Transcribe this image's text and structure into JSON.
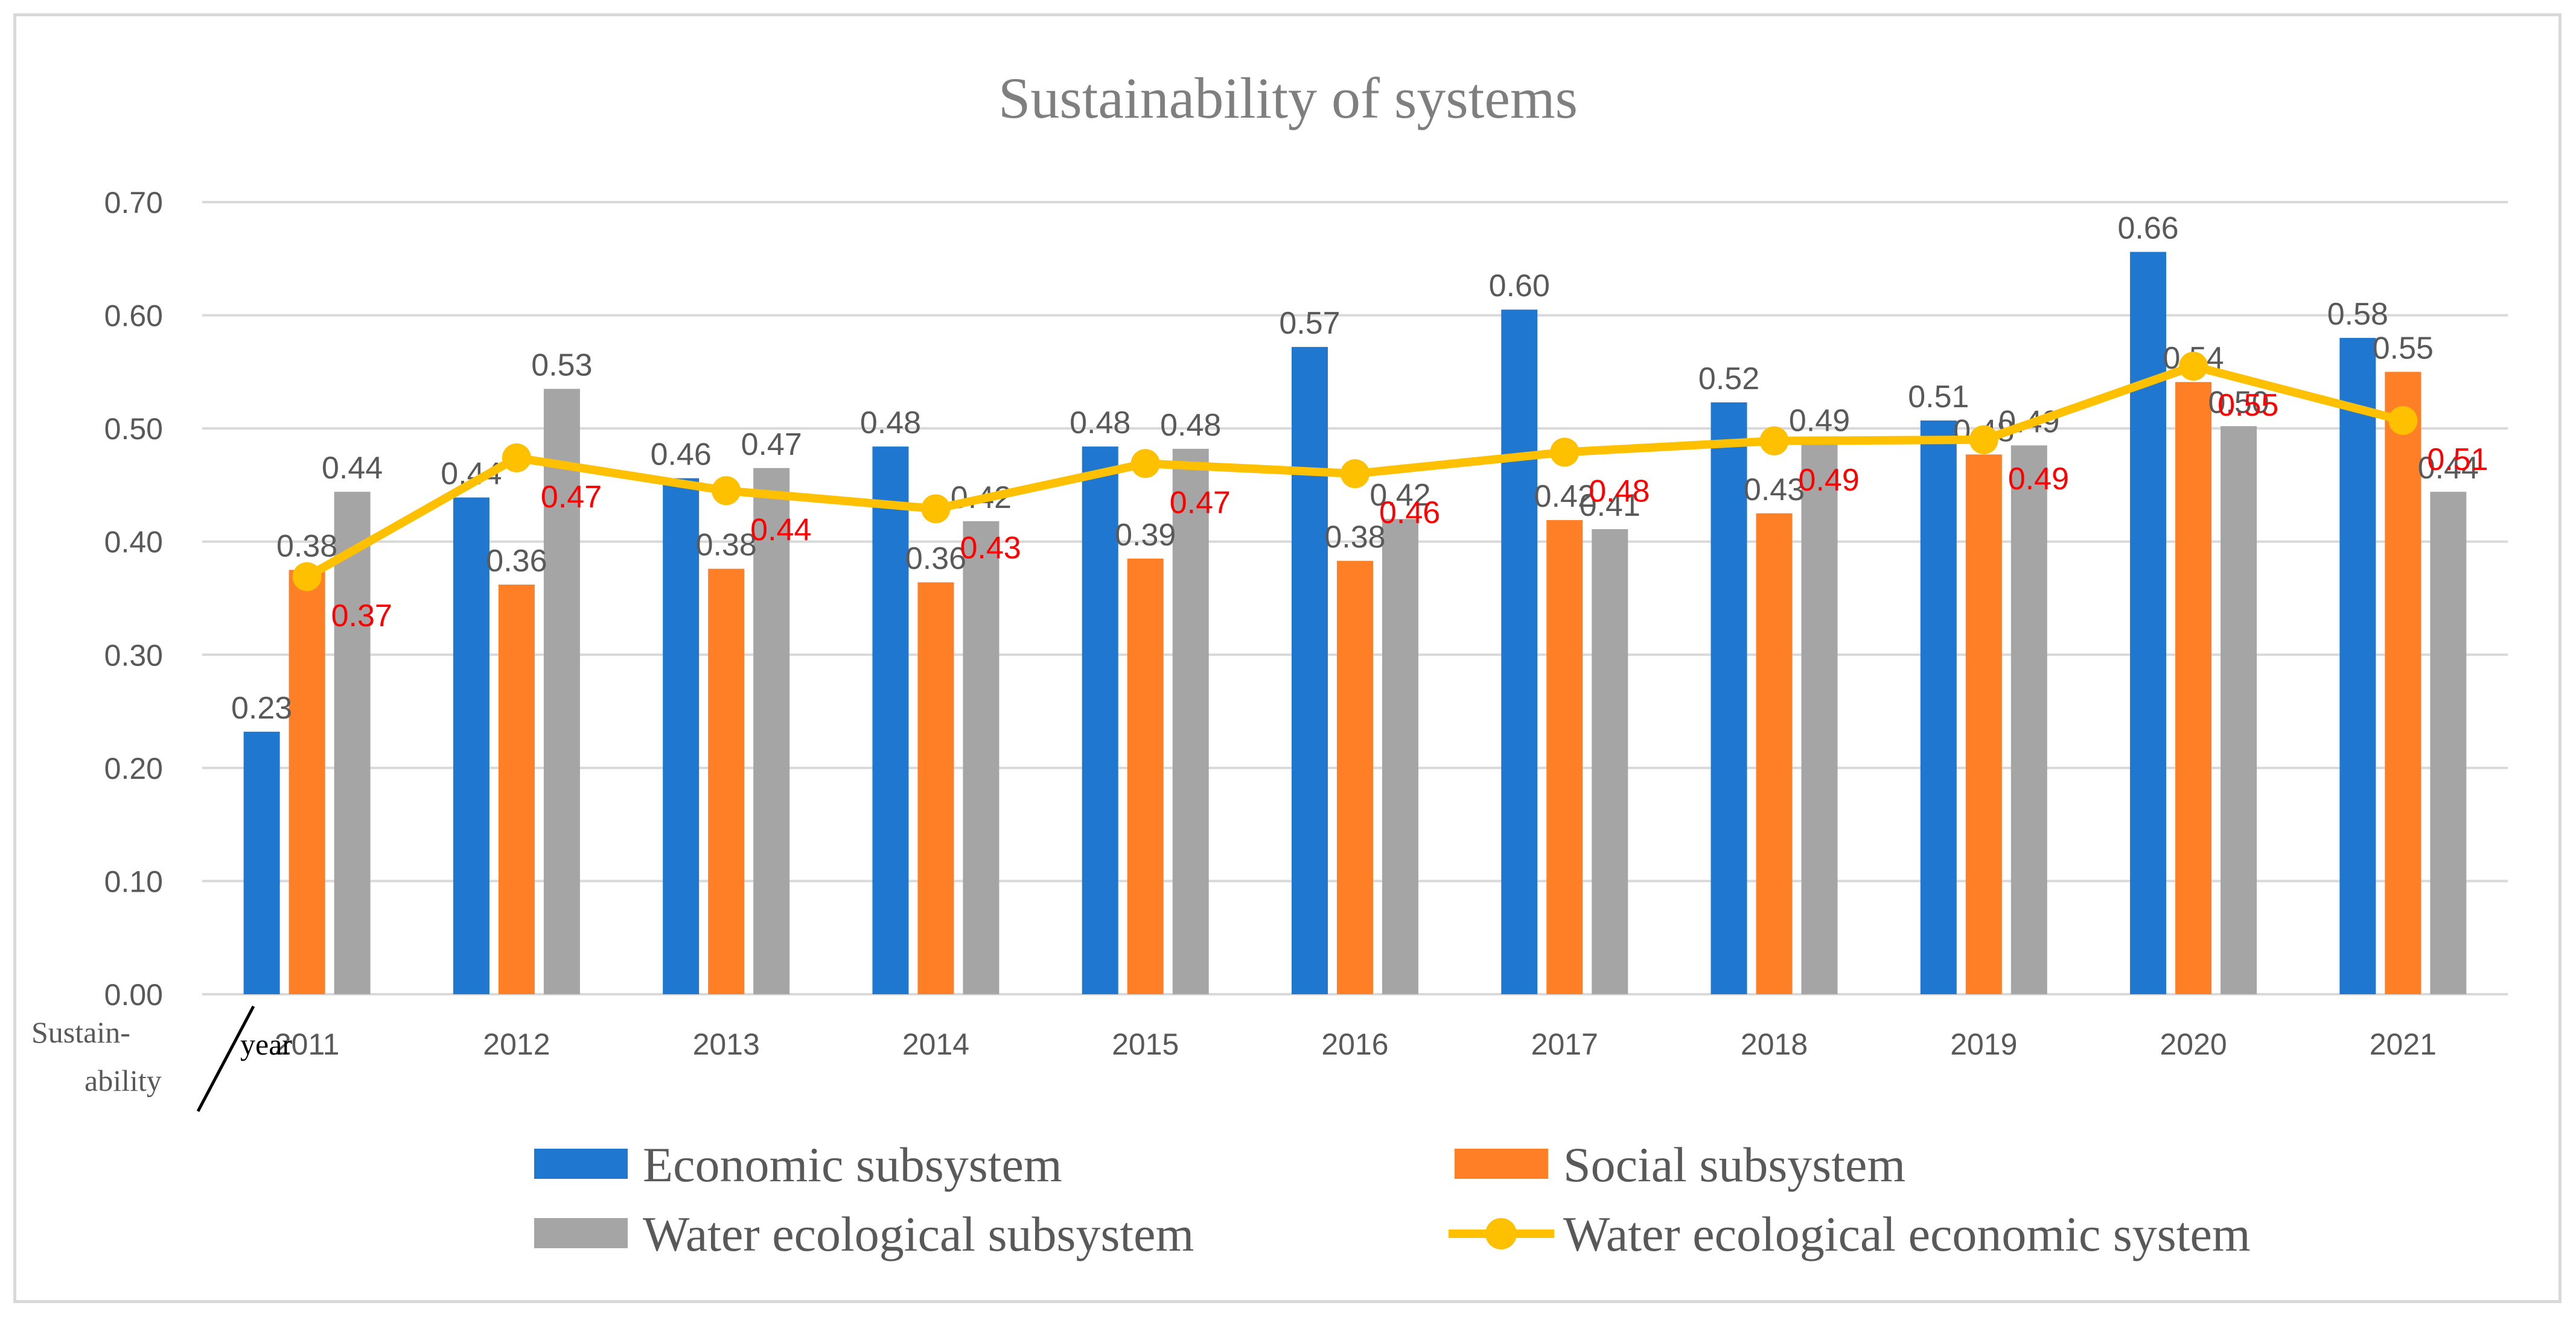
{
  "chart_data": {
    "type": "bar",
    "title": "Sustainability of systems",
    "categories": [
      "2011",
      "2012",
      "2013",
      "2014",
      "2015",
      "2016",
      "2017",
      "2018",
      "2019",
      "2020",
      "2021"
    ],
    "ylim": [
      0,
      0.7
    ],
    "yticks": [
      "0.00",
      "0.10",
      "0.20",
      "0.30",
      "0.40",
      "0.50",
      "0.60",
      "0.70"
    ],
    "grid": true,
    "legend_position": "bottom",
    "corner_label": {
      "top": "Sustain-",
      "bottom": "ability",
      "right": "year"
    },
    "series": [
      {
        "name": "Economic subsystem",
        "kind": "bar",
        "color": "#1f77d0",
        "values": [
          0.232,
          0.439,
          0.456,
          0.484,
          0.484,
          0.572,
          0.605,
          0.523,
          0.507,
          0.656,
          0.58
        ],
        "labels": [
          "0.23",
          "0.44",
          "0.46",
          "0.48",
          "0.48",
          "0.57",
          "0.60",
          "0.52",
          "0.51",
          "0.66",
          "0.58"
        ]
      },
      {
        "name": "Social subsystem",
        "kind": "bar",
        "color": "#ff7f27",
        "values": [
          0.375,
          0.362,
          0.376,
          0.364,
          0.385,
          0.383,
          0.419,
          0.425,
          0.477,
          0.541,
          0.55
        ],
        "labels": [
          "0.38",
          "0.36",
          "0.38",
          "0.36",
          "0.39",
          "0.38",
          "0.42",
          "0.43",
          "0.48",
          "0.54",
          "0.55"
        ]
      },
      {
        "name": "Water ecological subsystem",
        "kind": "bar",
        "color": "#a5a5a5",
        "values": [
          0.444,
          0.535,
          0.465,
          0.418,
          0.482,
          0.42,
          0.411,
          0.486,
          0.485,
          0.502,
          0.444
        ],
        "labels": [
          "0.44",
          "0.53",
          "0.47",
          "0.42",
          "0.48",
          "0.42",
          "0.41",
          "0.49",
          "0.49",
          "0.50",
          "0.44"
        ]
      },
      {
        "name": "Water ecological economic system",
        "kind": "line",
        "color": "#ffc000",
        "label_color": "#ff0000",
        "values": [
          0.369,
          0.474,
          0.445,
          0.429,
          0.469,
          0.46,
          0.479,
          0.489,
          0.49,
          0.555,
          0.507
        ],
        "labels": [
          "0.37",
          "0.47",
          "0.44",
          "0.43",
          "0.47",
          "0.46",
          "0.48",
          "0.49",
          "0.49",
          "0.55",
          "0.51"
        ]
      }
    ]
  }
}
